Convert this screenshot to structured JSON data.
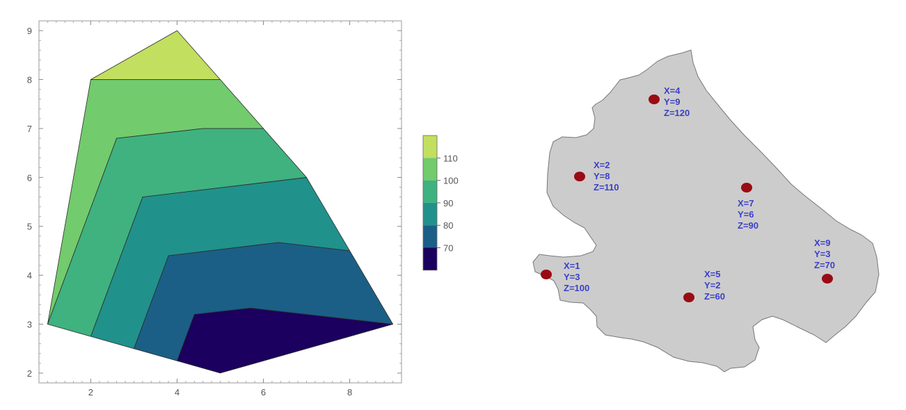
{
  "chart_data": [
    {
      "type": "contour",
      "title": "",
      "xlabel": "",
      "ylabel": "",
      "xlim": [
        0.8,
        9.2
      ],
      "ylim": [
        1.8,
        9.2
      ],
      "x_ticks": [
        2,
        4,
        6,
        8
      ],
      "y_ticks": [
        2,
        3,
        4,
        5,
        6,
        7,
        8,
        9
      ],
      "x_tick_labels": [
        "2",
        "4",
        "6",
        "8"
      ],
      "y_tick_labels": [
        "2",
        "3",
        "4",
        "5",
        "6",
        "7",
        "8",
        "9"
      ],
      "hull": [
        [
          1,
          3
        ],
        [
          2,
          8
        ],
        [
          4,
          9
        ],
        [
          7,
          6
        ],
        [
          9,
          3
        ],
        [
          5,
          2
        ]
      ],
      "levels": [
        {
          "name": "below-70",
          "color": "#1b005f",
          "polygon": [
            [
              4.4,
              3.2
            ],
            [
              5.7,
              3.33
            ],
            [
              9,
              3
            ],
            [
              5,
              2
            ],
            [
              4,
              2.25
            ]
          ]
        },
        {
          "name": "70-80",
          "color": "#1b5f86",
          "polygon": [
            [
              3.8,
              4.4
            ],
            [
              6.35,
              4.67
            ],
            [
              8,
              4.5
            ],
            [
              9,
              3
            ],
            [
              5.7,
              3.33
            ],
            [
              4.4,
              3.2
            ],
            [
              4,
              2.25
            ],
            [
              3,
              2.5
            ]
          ]
        },
        {
          "name": "80-90",
          "color": "#21918c",
          "polygon": [
            [
              3.2,
              5.6
            ],
            [
              7,
              6
            ],
            [
              8,
              4.5
            ],
            [
              6.35,
              4.67
            ],
            [
              3.8,
              4.4
            ],
            [
              3,
              2.5
            ],
            [
              2,
              2.75
            ]
          ]
        },
        {
          "name": "90-100",
          "color": "#3fb27f",
          "polygon": [
            [
              2.6,
              6.8
            ],
            [
              4.6,
              7
            ],
            [
              6,
              7
            ],
            [
              7,
              6
            ],
            [
              3.2,
              5.6
            ],
            [
              2,
              2.75
            ],
            [
              1,
              3
            ]
          ]
        },
        {
          "name": "100-110",
          "color": "#72cb6c",
          "polygon": [
            [
              2,
              8
            ],
            [
              5,
              8
            ],
            [
              6,
              7
            ],
            [
              4.6,
              7
            ],
            [
              2.6,
              6.8
            ],
            [
              1,
              3
            ]
          ]
        },
        {
          "name": "above-110",
          "color": "#c3df5f",
          "polygon": [
            [
              2,
              8
            ],
            [
              4,
              9
            ],
            [
              5,
              8
            ]
          ]
        }
      ],
      "legend": {
        "placement": "right",
        "colors": [
          "#1b005f",
          "#1b5f86",
          "#21918c",
          "#3fb27f",
          "#72cb6c",
          "#c3df5f"
        ],
        "labels": [
          "70",
          "80",
          "90",
          "100",
          "110"
        ]
      }
    },
    {
      "type": "scatter",
      "title": "",
      "points": [
        {
          "label_x": "X=4",
          "label_y": "Y=9",
          "label_z": "Z=120",
          "x": 4,
          "y": 9,
          "z": 120
        },
        {
          "label_x": "X=2",
          "label_y": "Y=8",
          "label_z": "Z=110",
          "x": 2,
          "y": 8,
          "z": 110
        },
        {
          "label_x": "X=7",
          "label_y": "Y=6",
          "label_z": "Z=90",
          "x": 7,
          "y": 6,
          "z": 90
        },
        {
          "label_x": "X=9",
          "label_y": "Y=3",
          "label_z": "Z=70",
          "x": 9,
          "y": 3,
          "z": 70
        },
        {
          "label_x": "X=1",
          "label_y": "Y=3",
          "label_z": "Z=100",
          "x": 1,
          "y": 3,
          "z": 100
        },
        {
          "label_x": "X=5",
          "label_y": "Y=2",
          "label_z": "Z=60",
          "x": 5,
          "y": 2,
          "z": 60
        }
      ],
      "marker_color": "#9a0b14",
      "label_color": "#3b3fc8",
      "region_color": "#cccccc"
    }
  ]
}
